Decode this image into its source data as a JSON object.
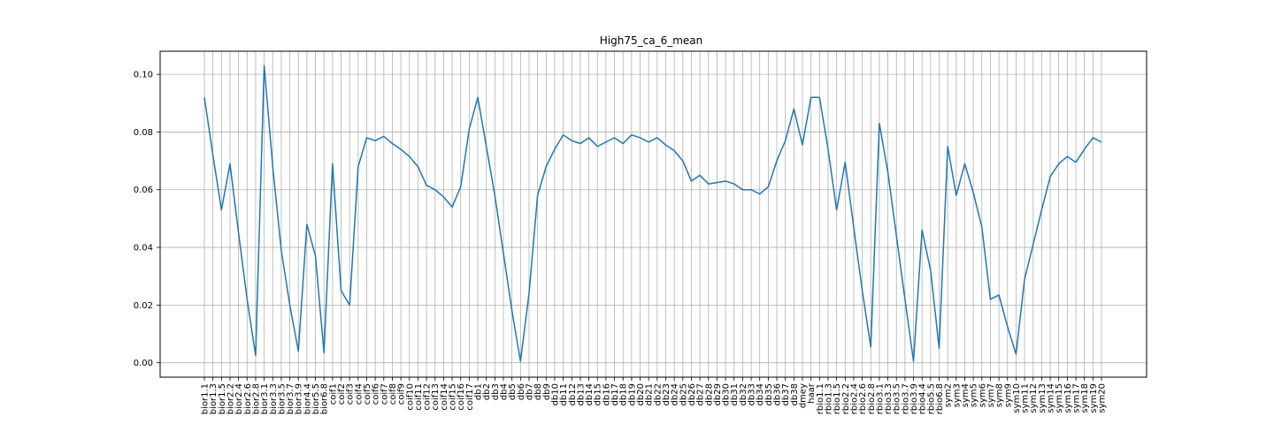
{
  "chart_data": {
    "type": "line",
    "title": "High75_ca_6_mean",
    "xlabel": "",
    "ylabel": "",
    "ylim": [
      -0.005,
      0.108
    ],
    "yticks": [
      0.0,
      0.02,
      0.04,
      0.06,
      0.08,
      0.1
    ],
    "ytick_labels": [
      "0.00",
      "0.02",
      "0.04",
      "0.06",
      "0.08",
      "0.10"
    ],
    "grid": true,
    "line_color": "#1f77b4",
    "categories": [
      "bior1.1",
      "bior1.3",
      "bior1.5",
      "bior2.2",
      "bior2.4",
      "bior2.6",
      "bior2.8",
      "bior3.1",
      "bior3.3",
      "bior3.5",
      "bior3.7",
      "bior3.9",
      "bior4.4",
      "bior5.5",
      "bior6.8",
      "coif1",
      "coif2",
      "coif3",
      "coif4",
      "coif5",
      "coif6",
      "coif7",
      "coif8",
      "coif9",
      "coif10",
      "coif11",
      "coif12",
      "coif13",
      "coif14",
      "coif15",
      "coif16",
      "coif17",
      "db1",
      "db2",
      "db3",
      "db4",
      "db5",
      "db6",
      "db7",
      "db8",
      "db9",
      "db10",
      "db11",
      "db12",
      "db13",
      "db14",
      "db15",
      "db16",
      "db17",
      "db18",
      "db19",
      "db20",
      "db21",
      "db22",
      "db23",
      "db24",
      "db25",
      "db26",
      "db27",
      "db28",
      "db29",
      "db30",
      "db31",
      "db32",
      "db33",
      "db34",
      "db35",
      "db36",
      "db37",
      "db38",
      "dmey",
      "haar",
      "rbio1.1",
      "rbio1.3",
      "rbio1.5",
      "rbio2.2",
      "rbio2.4",
      "rbio2.6",
      "rbio2.8",
      "rbio3.1",
      "rbio3.3",
      "rbio3.5",
      "rbio3.7",
      "rbio3.9",
      "rbio4.4",
      "rbio5.5",
      "rbio6.8",
      "sym2",
      "sym3",
      "sym4",
      "sym5",
      "sym6",
      "sym7",
      "sym8",
      "sym9",
      "sym10",
      "sym11",
      "sym12",
      "sym13",
      "sym14",
      "sym15",
      "sym16",
      "sym17",
      "sym18",
      "sym19",
      "sym20"
    ],
    "values": [
      0.092,
      0.072,
      0.053,
      0.069,
      0.045,
      0.022,
      0.0025,
      0.103,
      0.068,
      0.039,
      0.02,
      0.004,
      0.048,
      0.037,
      0.0035,
      0.069,
      0.025,
      0.02,
      0.068,
      0.078,
      0.077,
      0.0785,
      0.076,
      0.074,
      0.0715,
      0.068,
      0.0615,
      0.06,
      0.0575,
      0.054,
      0.061,
      0.081,
      0.092,
      0.075,
      0.058,
      0.038,
      0.018,
      0.0005,
      0.024,
      0.058,
      0.068,
      0.074,
      0.079,
      0.077,
      0.076,
      0.078,
      0.075,
      0.0765,
      0.078,
      0.076,
      0.079,
      0.078,
      0.0765,
      0.078,
      0.0755,
      0.0735,
      0.07,
      0.063,
      0.065,
      0.062,
      0.0625,
      0.063,
      0.062,
      0.06,
      0.06,
      0.0585,
      0.061,
      0.07,
      0.077,
      0.088,
      0.0755,
      0.092,
      0.092,
      0.074,
      0.053,
      0.0695,
      0.047,
      0.025,
      0.0055,
      0.083,
      0.066,
      0.044,
      0.022,
      0.0005,
      0.046,
      0.032,
      0.005,
      0.075,
      0.058,
      0.069,
      0.059,
      0.047,
      0.022,
      0.0235,
      0.0125,
      0.003,
      0.029,
      0.041,
      0.053,
      0.0645,
      0.069,
      0.0715,
      0.0695,
      0.074,
      0.078,
      0.0765
    ]
  }
}
